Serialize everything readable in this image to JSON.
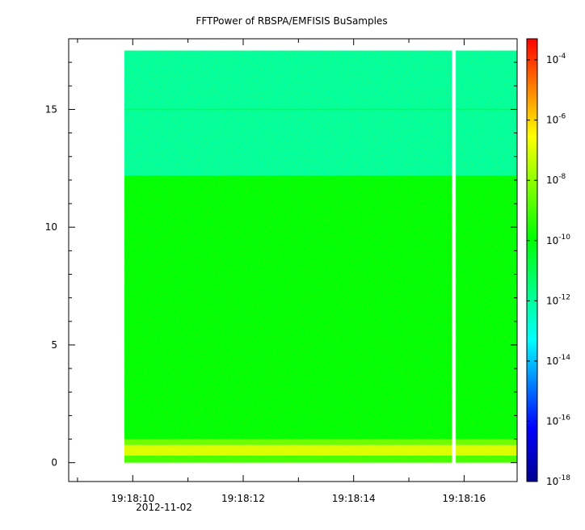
{
  "chart_data": {
    "type": "heatmap",
    "title": "FFTPower of RBSPA/EMFISIS  BuSamples",
    "xlabel": "",
    "ylabel": "",
    "x_date_label": "2012-11-02",
    "x_range": [
      "19:18:08.84",
      "19:18:16.96"
    ],
    "y_range": [
      -0.8,
      18.0
    ],
    "x_ticks": [
      {
        "value": "19:18:10",
        "label": "19:18:10"
      },
      {
        "value": "19:18:12",
        "label": "19:18:12"
      },
      {
        "value": "19:18:14",
        "label": "19:18:14"
      },
      {
        "value": "19:18:16",
        "label": "19:18:16"
      }
    ],
    "x_minor_ticks": [
      "19:18:09",
      "19:18:11",
      "19:18:13",
      "19:18:15"
    ],
    "y_ticks": [
      {
        "value": 0,
        "label": "0"
      },
      {
        "value": 5,
        "label": "5"
      },
      {
        "value": 10,
        "label": "10"
      },
      {
        "value": 15,
        "label": "15"
      }
    ],
    "data_extent": {
      "x": [
        "19:18:09.85",
        "19:18:16.96"
      ],
      "y": [
        0,
        17.5
      ]
    },
    "data_gap": {
      "x": [
        "19:18:15.78",
        "19:18:15.85"
      ]
    },
    "bands": [
      {
        "y": [
          0,
          0.3
        ],
        "log10_power": -9
      },
      {
        "y": [
          0.3,
          0.75
        ],
        "log10_power": -7
      },
      {
        "y": [
          0.75,
          1.0
        ],
        "log10_power": -8.5
      },
      {
        "y": [
          1.0,
          12.2
        ],
        "log10_power": -10
      },
      {
        "y": [
          12.2,
          17.5
        ],
        "log10_power": -12
      }
    ],
    "line_features": [
      {
        "y": 15.0,
        "log10_power": -11
      }
    ],
    "colorbar": {
      "scale": "log",
      "range": [
        -18,
        -3.3
      ],
      "ticks": [
        {
          "exp": -4,
          "base": "10",
          "sup": "-4"
        },
        {
          "exp": -6,
          "base": "10",
          "sup": "-6"
        },
        {
          "exp": -8,
          "base": "10",
          "sup": "-8"
        },
        {
          "exp": -10,
          "base": "10",
          "sup": "-10"
        },
        {
          "exp": -12,
          "base": "10",
          "sup": "-12"
        },
        {
          "exp": -14,
          "base": "10",
          "sup": "-14"
        },
        {
          "exp": -16,
          "base": "10",
          "sup": "-16"
        },
        {
          "exp": -18,
          "base": "10",
          "sup": "-18"
        }
      ],
      "colors": [
        "#00008f",
        "#0000ff",
        "#00ffff",
        "#00ff00",
        "#ffff00",
        "#ff0000"
      ]
    }
  }
}
